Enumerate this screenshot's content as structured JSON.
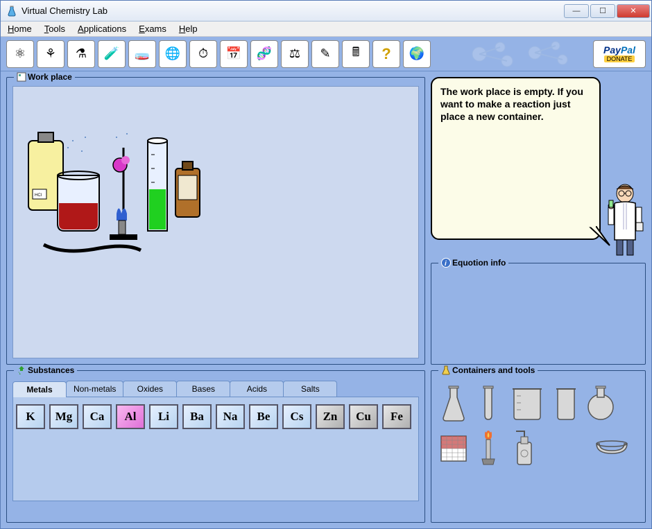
{
  "window": {
    "title": "Virtual Chemistry Lab"
  },
  "menu": {
    "items": [
      "Home",
      "Tools",
      "Applications",
      "Exams",
      "Help"
    ]
  },
  "toolbar": {
    "buttons": [
      {
        "name": "atom-icon",
        "glyph": "⚛"
      },
      {
        "name": "molecules-icon",
        "glyph": "⚘"
      },
      {
        "name": "flasks-icon",
        "glyph": "⚗"
      },
      {
        "name": "beaker1-icon",
        "glyph": "🧪"
      },
      {
        "name": "beaker2-icon",
        "glyph": "🧫"
      },
      {
        "name": "planet-icon",
        "glyph": "🌐"
      },
      {
        "name": "timer-icon",
        "glyph": "⏱"
      },
      {
        "name": "calendar-icon",
        "glyph": "📅"
      },
      {
        "name": "tubes-icon",
        "glyph": "🧬"
      },
      {
        "name": "scale-icon",
        "glyph": "⚖"
      },
      {
        "name": "write-icon",
        "glyph": "✎"
      },
      {
        "name": "calculator-icon",
        "glyph": "🖩"
      },
      {
        "name": "help-icon",
        "glyph": "?"
      },
      {
        "name": "globe-help-icon",
        "glyph": "🌍"
      }
    ],
    "paypal_label": "PayPal",
    "paypal_donate": "DONATE"
  },
  "panels": {
    "workplace_label": "Work place",
    "substances_label": "Substances",
    "containers_label": "Containers and tools",
    "equation_label": "Equotion info"
  },
  "speech": {
    "text": "The work place is empty. If you want to make a reaction just place a new container."
  },
  "substances": {
    "tabs": [
      "Metals",
      "Non-metals",
      "Oxides",
      "Bases",
      "Acids",
      "Salts"
    ],
    "active_tab": 0,
    "elements": [
      "K",
      "Mg",
      "Ca",
      "Al",
      "Li",
      "Ba",
      "Na",
      "Be",
      "Cs",
      "Zn",
      "Cu",
      "Fe"
    ]
  },
  "containers": {
    "items": [
      {
        "name": "flask-erlenmeyer"
      },
      {
        "name": "test-tube"
      },
      {
        "name": "beaker-wide"
      },
      {
        "name": "beaker-narrow"
      },
      {
        "name": "flask-round"
      },
      {
        "name": "gauze-pad"
      },
      {
        "name": "bunsen-burner"
      },
      {
        "name": "wash-bottle"
      },
      {
        "name": "dish"
      }
    ]
  },
  "colors": {
    "chrome_bg": "#95b3e6",
    "canvas_bg": "#cdd9ef",
    "bubble_bg": "#fcfce8",
    "border_dark": "#2a4d80",
    "tab_active": "#d8e4f5",
    "tab_bg": "#b5cbed",
    "close_btn": "#cf3b2f"
  }
}
